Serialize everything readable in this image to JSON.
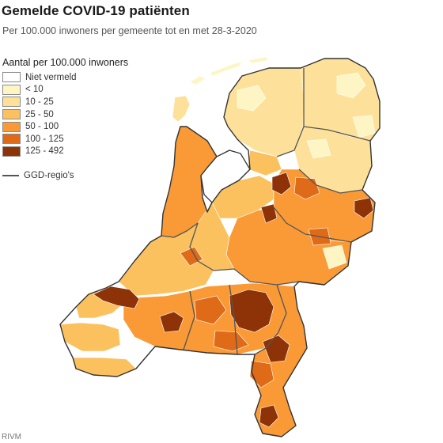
{
  "title": "Gemelde COVID-19 patiënten",
  "subtitle": "Per 100.000 inwoners per gemeente tot en met 28-3-2020",
  "legend": {
    "title": "Aantal per 100.000 inwoners",
    "items": [
      {
        "label": "Niet vermeld",
        "color": "#ffffff"
      },
      {
        "label": "< 10",
        "color": "#fdf6c4"
      },
      {
        "label": "10 - 25",
        "color": "#fde19a"
      },
      {
        "label": "25 - 50",
        "color": "#fbc15f"
      },
      {
        "label": "50 - 100",
        "color": "#f99a36"
      },
      {
        "label": "100 - 125",
        "color": "#df6a17"
      },
      {
        "label": "125 - 492",
        "color": "#8d3307"
      }
    ],
    "region_line_label": "GGD-regio's",
    "region_line_color": "#555555"
  },
  "source": "RIVM"
}
